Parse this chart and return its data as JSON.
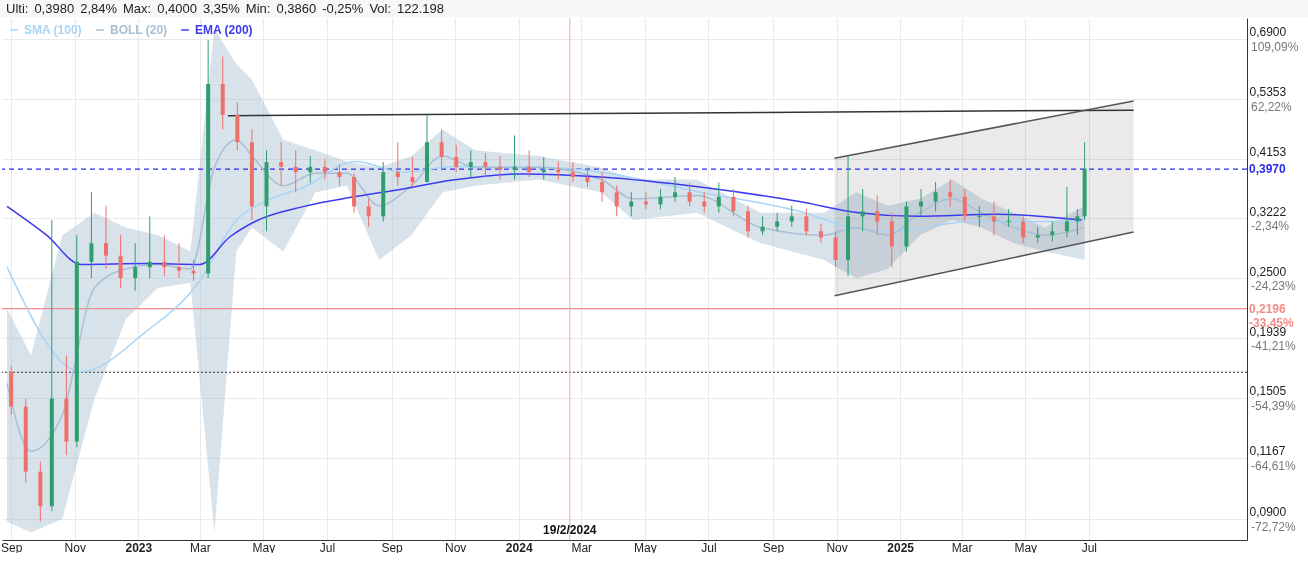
{
  "chart_data": {
    "type": "candlestick",
    "annotations": [
      "-72,72%",
      "-64,61%",
      "-54,39%",
      "-41,21%",
      "-24,23%",
      "-2,34%",
      null,
      "62,22%",
      "109,09%",
      "Ulti:",
      "0,3980",
      "2,84%",
      "Max:",
      "0,4000",
      "3,35%",
      "Min:",
      "0,3860",
      "-0,25%",
      "Vol:",
      "122.198"
    ],
    "x": [
      "2022-09-01",
      "2022-09-15",
      "2022-09-29",
      "2022-10-10",
      "2022-10-24",
      "2022-11-03",
      "2022-11-17",
      "2022-12-01",
      "2022-12-15",
      "2022-12-29",
      "2023-01-12",
      "2023-01-26",
      "2023-02-09",
      "2023-02-23",
      "2023-03-09",
      "2023-03-23",
      "2023-04-06",
      "2023-04-20",
      "2023-05-04",
      "2023-05-18",
      "2023-06-01",
      "2023-06-15",
      "2023-06-29",
      "2023-07-13",
      "2023-07-27",
      "2023-08-10",
      "2023-08-24",
      "2023-09-07",
      "2023-09-21",
      "2023-10-05",
      "2023-10-19",
      "2023-11-02",
      "2023-11-16",
      "2023-11-30",
      "2023-12-14",
      "2023-12-28",
      "2024-01-11",
      "2024-01-25",
      "2024-02-08",
      "2024-02-22",
      "2024-03-07",
      "2024-03-21",
      "2024-04-04",
      "2024-04-18",
      "2024-05-02",
      "2024-05-16",
      "2024-05-30",
      "2024-06-13",
      "2024-06-27",
      "2024-07-11",
      "2024-07-25",
      "2024-08-08",
      "2024-08-22",
      "2024-09-05",
      "2024-09-19",
      "2024-10-03",
      "2024-10-17",
      "2024-10-31",
      "2024-11-12",
      "2024-11-26",
      "2024-12-10",
      "2024-12-24",
      "2025-01-07",
      "2025-01-21",
      "2025-02-04",
      "2025-02-18",
      "2025-03-04",
      "2025-03-18",
      "2025-04-01",
      "2025-04-15",
      "2025-04-29",
      "2025-05-13",
      "2025-05-27",
      "2025-06-10",
      "2025-06-20",
      "2025-06-27"
    ],
    "ohlc": [
      [
        0.168,
        0.172,
        0.14,
        0.145
      ],
      [
        0.145,
        0.15,
        0.105,
        0.11
      ],
      [
        0.11,
        0.115,
        0.089,
        0.095
      ],
      [
        0.095,
        0.32,
        0.093,
        0.15
      ],
      [
        0.15,
        0.18,
        0.118,
        0.125
      ],
      [
        0.125,
        0.3,
        0.122,
        0.268
      ],
      [
        0.268,
        0.36,
        0.25,
        0.29
      ],
      [
        0.29,
        0.34,
        0.26,
        0.275
      ],
      [
        0.275,
        0.3,
        0.24,
        0.25
      ],
      [
        0.25,
        0.29,
        0.237,
        0.262
      ],
      [
        0.262,
        0.325,
        0.25,
        0.268
      ],
      [
        0.268,
        0.3,
        0.252,
        0.262
      ],
      [
        0.262,
        0.29,
        0.25,
        0.258
      ],
      [
        0.258,
        0.27,
        0.247,
        0.255
      ],
      [
        0.255,
        0.687,
        0.25,
        0.57
      ],
      [
        0.57,
        0.64,
        0.47,
        0.5
      ],
      [
        0.5,
        0.527,
        0.43,
        0.445
      ],
      [
        0.445,
        0.47,
        0.32,
        0.339
      ],
      [
        0.339,
        0.43,
        0.305,
        0.409
      ],
      [
        0.409,
        0.445,
        0.37,
        0.401
      ],
      [
        0.401,
        0.43,
        0.36,
        0.392
      ],
      [
        0.392,
        0.42,
        0.375,
        0.401
      ],
      [
        0.401,
        0.415,
        0.38,
        0.392
      ],
      [
        0.392,
        0.405,
        0.37,
        0.384
      ],
      [
        0.384,
        0.39,
        0.33,
        0.339
      ],
      [
        0.339,
        0.35,
        0.311,
        0.325
      ],
      [
        0.325,
        0.409,
        0.318,
        0.392
      ],
      [
        0.392,
        0.445,
        0.37,
        0.384
      ],
      [
        0.384,
        0.418,
        0.368,
        0.376
      ],
      [
        0.376,
        0.5,
        0.376,
        0.445
      ],
      [
        0.445,
        0.47,
        0.4,
        0.418
      ],
      [
        0.418,
        0.44,
        0.392,
        0.401
      ],
      [
        0.401,
        0.43,
        0.384,
        0.409
      ],
      [
        0.409,
        0.425,
        0.384,
        0.401
      ],
      [
        0.401,
        0.42,
        0.38,
        0.396
      ],
      [
        0.396,
        0.458,
        0.38,
        0.401
      ],
      [
        0.401,
        0.43,
        0.384,
        0.392
      ],
      [
        0.392,
        0.418,
        0.38,
        0.396
      ],
      [
        0.396,
        0.41,
        0.38,
        0.392
      ],
      [
        0.392,
        0.409,
        0.376,
        0.384
      ],
      [
        0.384,
        0.4,
        0.368,
        0.376
      ],
      [
        0.376,
        0.392,
        0.346,
        0.36
      ],
      [
        0.36,
        0.37,
        0.325,
        0.339
      ],
      [
        0.339,
        0.36,
        0.325,
        0.346
      ],
      [
        0.346,
        0.36,
        0.335,
        0.342
      ],
      [
        0.342,
        0.365,
        0.335,
        0.353
      ],
      [
        0.353,
        0.384,
        0.346,
        0.36
      ],
      [
        0.36,
        0.375,
        0.339,
        0.346
      ],
      [
        0.346,
        0.36,
        0.33,
        0.339
      ],
      [
        0.339,
        0.375,
        0.33,
        0.353
      ],
      [
        0.353,
        0.365,
        0.325,
        0.332
      ],
      [
        0.332,
        0.34,
        0.297,
        0.305
      ],
      [
        0.305,
        0.325,
        0.3,
        0.311
      ],
      [
        0.311,
        0.33,
        0.305,
        0.318
      ],
      [
        0.318,
        0.34,
        0.311,
        0.325
      ],
      [
        0.325,
        0.335,
        0.3,
        0.305
      ],
      [
        0.305,
        0.315,
        0.29,
        0.297
      ],
      [
        0.297,
        0.305,
        0.262,
        0.27
      ],
      [
        0.27,
        0.42,
        0.252,
        0.325
      ],
      [
        0.325,
        0.365,
        0.305,
        0.332
      ],
      [
        0.332,
        0.355,
        0.3,
        0.318
      ],
      [
        0.318,
        0.33,
        0.262,
        0.286
      ],
      [
        0.286,
        0.346,
        0.28,
        0.339
      ],
      [
        0.339,
        0.365,
        0.325,
        0.346
      ],
      [
        0.346,
        0.376,
        0.332,
        0.36
      ],
      [
        0.36,
        0.38,
        0.339,
        0.353
      ],
      [
        0.353,
        0.365,
        0.318,
        0.325
      ],
      [
        0.325,
        0.339,
        0.311,
        0.325
      ],
      [
        0.325,
        0.346,
        0.3,
        0.318
      ],
      [
        0.318,
        0.335,
        0.311,
        0.318
      ],
      [
        0.318,
        0.325,
        0.29,
        0.297
      ],
      [
        0.297,
        0.311,
        0.29,
        0.3
      ],
      [
        0.3,
        0.318,
        0.292,
        0.305
      ],
      [
        0.305,
        0.368,
        0.297,
        0.318
      ],
      [
        0.318,
        0.335,
        0.3,
        0.325
      ],
      [
        0.325,
        0.445,
        0.32,
        0.398
      ]
    ],
    "series": [
      {
        "name": "SMA (100)",
        "type": "line",
        "color": "#a8d4f5",
        "x": [
          "2022-08-28",
          "2022-11-07",
          "2023-01-08",
          "2023-03-01",
          "2023-04-04",
          "2023-05-02",
          "2023-06-09",
          "2023-07-28",
          "2023-09-12",
          "2023-10-30",
          "2024-01-04",
          "2024-03-20",
          "2024-06-23",
          "2024-09-26",
          "2024-11-13",
          "2024-12-31",
          "2025-03-08",
          "2025-06-24"
        ],
        "values": [
          0.262,
          0.168,
          0.199,
          0.247,
          0.318,
          0.346,
          0.368,
          0.41,
          0.392,
          0.401,
          0.401,
          0.392,
          0.36,
          0.332,
          0.311,
          0.305,
          0.318,
          0.318
        ]
      },
      {
        "name": "BOLL (20)",
        "type": "line",
        "color": "#a9bfd3",
        "x": [
          "2022-08-28",
          "2022-09-20",
          "2022-10-20",
          "2022-11-20",
          "2022-12-20",
          "2023-01-20",
          "2023-02-20",
          "2023-03-15",
          "2023-04-05",
          "2023-04-20",
          "2023-05-20",
          "2023-06-20",
          "2023-07-20",
          "2023-08-20",
          "2023-09-20",
          "2023-10-20",
          "2023-11-20",
          "2024-01-20",
          "2024-03-20",
          "2024-04-20",
          "2024-06-20",
          "2024-08-20",
          "2024-10-20",
          "2024-11-20",
          "2024-12-20",
          "2025-01-20",
          "2025-02-20",
          "2025-03-20",
          "2025-04-20",
          "2025-05-20",
          "2025-06-27"
        ],
        "values": [
          0.16,
          0.12,
          0.14,
          0.24,
          0.26,
          0.265,
          0.26,
          0.4,
          0.45,
          0.42,
          0.37,
          0.39,
          0.39,
          0.34,
          0.37,
          0.42,
          0.4,
          0.4,
          0.38,
          0.35,
          0.355,
          0.31,
          0.3,
          0.31,
          0.3,
          0.33,
          0.35,
          0.33,
          0.31,
          0.3,
          0.31
        ],
        "lower": [
          0.089,
          0.085,
          0.09,
          0.15,
          0.21,
          0.24,
          0.245,
          0.085,
          0.28,
          0.31,
          0.28,
          0.36,
          0.37,
          0.27,
          0.3,
          0.36,
          0.37,
          0.38,
          0.36,
          0.32,
          0.33,
          0.29,
          0.27,
          0.25,
          0.26,
          0.3,
          0.32,
          0.31,
          0.29,
          0.28,
          0.27
        ],
        "upper": [
          0.22,
          0.18,
          0.3,
          0.33,
          0.31,
          0.3,
          0.28,
          0.72,
          0.62,
          0.58,
          0.45,
          0.43,
          0.41,
          0.4,
          0.42,
          0.47,
          0.43,
          0.42,
          0.4,
          0.38,
          0.38,
          0.33,
          0.33,
          0.36,
          0.34,
          0.35,
          0.38,
          0.35,
          0.33,
          0.31,
          0.34
        ]
      },
      {
        "name": "EMA (200)",
        "type": "line",
        "color": "#3a3aee",
        "x": [
          "2022-08-28",
          "2022-10-05",
          "2022-11-07",
          "2023-01-08",
          "2023-03-01",
          "2023-03-30",
          "2023-04-23",
          "2023-06-09",
          "2023-07-27",
          "2023-09-12",
          "2023-10-30",
          "2024-01-04",
          "2024-03-20",
          "2024-06-23",
          "2024-09-26",
          "2024-11-22",
          "2025-01-18",
          "2025-04-04",
          "2025-06-24"
        ],
        "values": [
          0.339,
          0.3,
          0.265,
          0.266,
          0.265,
          0.298,
          0.318,
          0.339,
          0.353,
          0.365,
          0.379,
          0.389,
          0.384,
          0.368,
          0.346,
          0.33,
          0.325,
          0.328,
          0.32
        ]
      },
      {
        "type": "line",
        "color": "#333333",
        "x": [
          "2023-03-28",
          "2025-08-13"
        ],
        "values": [
          0.498,
          0.51
        ]
      },
      {
        "type": "line",
        "color": "#555555",
        "x": [
          "2024-10-30",
          "2025-08-13"
        ],
        "values": [
          0.416,
          0.53
        ]
      },
      {
        "type": "line",
        "color": "#555555",
        "x": [
          "2024-10-30",
          "2025-08-13"
        ],
        "values": [
          0.232,
          0.304
        ],
        "lower": [
          0.232,
          0.304
        ],
        "upper": [
          0.416,
          0.53
        ]
      }
    ],
    "xlim": [
      "2022-08-28",
      "2025-11-25"
    ],
    "xticks": [
      {
        "value": "2022-09-01",
        "label": "Sep"
      },
      {
        "value": "2022-11-01",
        "label": "Nov"
      },
      {
        "value": "2023-01-01",
        "label": "2023"
      },
      {
        "value": "2023-03-01",
        "label": "Mar"
      },
      {
        "value": "2023-05-01",
        "label": "May"
      },
      {
        "value": "2023-07-01",
        "label": "Jul"
      },
      {
        "value": "2023-09-01",
        "label": "Sep"
      },
      {
        "value": "2023-11-01",
        "label": "Nov"
      },
      {
        "value": "2024-01-01",
        "label": "2024"
      },
      {
        "value": "2024-03-01",
        "label": "Mar"
      },
      {
        "value": "2024-05-01",
        "label": "May"
      },
      {
        "value": "2024-07-01",
        "label": "Jul"
      },
      {
        "value": "2024-09-01",
        "label": "Sep"
      },
      {
        "value": "2024-11-01",
        "label": "Nov"
      },
      {
        "value": "2025-01-01",
        "label": "2025"
      },
      {
        "value": "2025-03-01",
        "label": "Mar"
      },
      {
        "value": "2025-05-01",
        "label": "May"
      },
      {
        "value": "2025-07-01",
        "label": "Jul"
      }
    ],
    "ylim": [
      0.0823,
      0.754
    ],
    "yticks": [
      {
        "value": 0.09,
        "label": "0,0900"
      },
      {
        "value": 0.1167,
        "label": "0,1167"
      },
      {
        "value": 0.1505,
        "label": "0,1505"
      },
      {
        "value": 0.1939,
        "label": "0,1939"
      },
      {
        "value": 0.25,
        "label": "0,2500"
      },
      {
        "value": 0.3222,
        "label": "0,3222"
      },
      {
        "value": 0.4153,
        "label": "0,4153"
      },
      {
        "value": 0.5353,
        "label": "0,5353"
      },
      {
        "value": 0.69,
        "label": "0,6900"
      }
    ],
    "log": "y",
    "grid": true,
    "legend": "top left",
    "ref_lines": [
      {
        "axis": "y",
        "value": 0.397,
        "label": "0,3970",
        "color": "#2a2aee",
        "line_style": "dashed"
      },
      {
        "axis": "y",
        "value": 0.2196,
        "label": "0,2196 -33,45%",
        "color": "#f28b8b",
        "line_style": "solid"
      },
      {
        "axis": "y",
        "value": 0.1677,
        "color": "#333333",
        "line_style": "dotted"
      },
      {
        "axis": "x",
        "value": "2024-02-19",
        "label": "19/2/2024",
        "color": "#f4a6a6",
        "line_style": "solid"
      }
    ]
  }
}
